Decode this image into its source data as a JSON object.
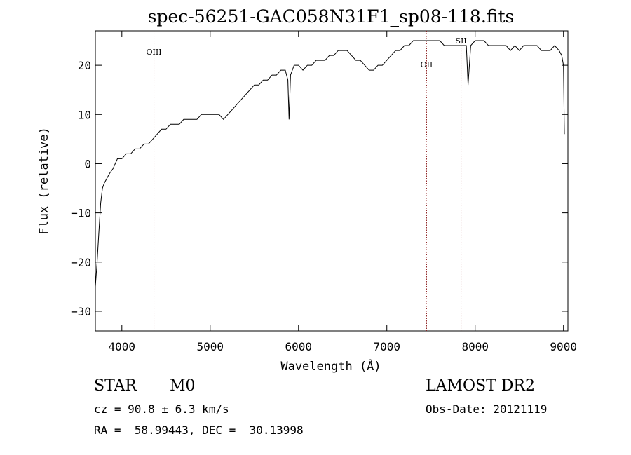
{
  "chart_data": {
    "type": "line",
    "title": "spec-56251-GAC058N31F1_sp08-118.fits",
    "xlabel": "Wavelength (Å)",
    "ylabel": "Flux (relative)",
    "xlim": [
      3700,
      9050
    ],
    "ylim": [
      -34,
      27
    ],
    "xticks": [
      4000,
      5000,
      6000,
      7000,
      8000,
      9000
    ],
    "yticks": [
      -30,
      -20,
      -10,
      0,
      10,
      20
    ],
    "grid": false,
    "series": [
      {
        "x": [
          3700,
          3720,
          3740,
          3760,
          3780,
          3800,
          3830,
          3860,
          3900,
          3950,
          4000,
          4050,
          4100,
          4150,
          4200,
          4250,
          4300,
          4350,
          4400,
          4450,
          4500,
          4550,
          4600,
          4650,
          4700,
          4750,
          4800,
          4850,
          4900,
          4950,
          5000,
          5050,
          5100,
          5150,
          5200,
          5250,
          5300,
          5350,
          5400,
          5450,
          5500,
          5550,
          5600,
          5650,
          5700,
          5750,
          5800,
          5850,
          5880,
          5893,
          5910,
          5950,
          6000,
          6050,
          6100,
          6150,
          6200,
          6250,
          6300,
          6350,
          6400,
          6450,
          6500,
          6550,
          6600,
          6650,
          6700,
          6750,
          6800,
          6850,
          6900,
          6950,
          7000,
          7050,
          7100,
          7150,
          7200,
          7250,
          7300,
          7350,
          7400,
          7450,
          7500,
          7550,
          7600,
          7650,
          7700,
          7750,
          7800,
          7850,
          7900,
          7910,
          7920,
          7950,
          8000,
          8050,
          8100,
          8150,
          8200,
          8250,
          8300,
          8350,
          8400,
          8450,
          8500,
          8550,
          8600,
          8650,
          8700,
          8750,
          8800,
          8850,
          8900,
          8950,
          8980,
          9000,
          9010
        ],
        "y": [
          -25,
          -20,
          -14,
          -8,
          -5,
          -4,
          -3,
          -2,
          -1,
          1,
          1,
          2,
          2,
          3,
          3,
          4,
          4,
          5,
          6,
          7,
          7,
          8,
          8,
          8,
          9,
          9,
          9,
          9,
          10,
          10,
          10,
          10,
          10,
          9,
          10,
          11,
          12,
          13,
          14,
          15,
          16,
          16,
          17,
          17,
          18,
          18,
          19,
          19,
          17,
          9,
          18,
          20,
          20,
          19,
          20,
          20,
          21,
          21,
          21,
          22,
          22,
          23,
          23,
          23,
          22,
          21,
          21,
          20,
          19,
          19,
          20,
          20,
          21,
          22,
          23,
          23,
          24,
          24,
          25,
          25,
          25,
          25,
          25,
          25,
          25,
          24,
          24,
          24,
          24,
          24,
          24,
          20,
          16,
          24,
          25,
          25,
          25,
          24,
          24,
          24,
          24,
          24,
          23,
          24,
          23,
          24,
          24,
          24,
          24,
          23,
          23,
          23,
          24,
          23,
          22,
          20,
          6
        ]
      }
    ],
    "annotations": [
      {
        "label": "OIII",
        "x": 4363
      },
      {
        "label": "OII",
        "x": 7450
      },
      {
        "label": "SII",
        "x": 7840
      }
    ]
  },
  "info": {
    "class_label": "STAR",
    "subclass_label": "M0",
    "survey": "LAMOST DR2",
    "cz": "cz = 90.8 ± 6.3 km/s",
    "obs_date": "Obs-Date: 20121119",
    "coords": "RA =  58.99443, DEC =  30.13998"
  }
}
